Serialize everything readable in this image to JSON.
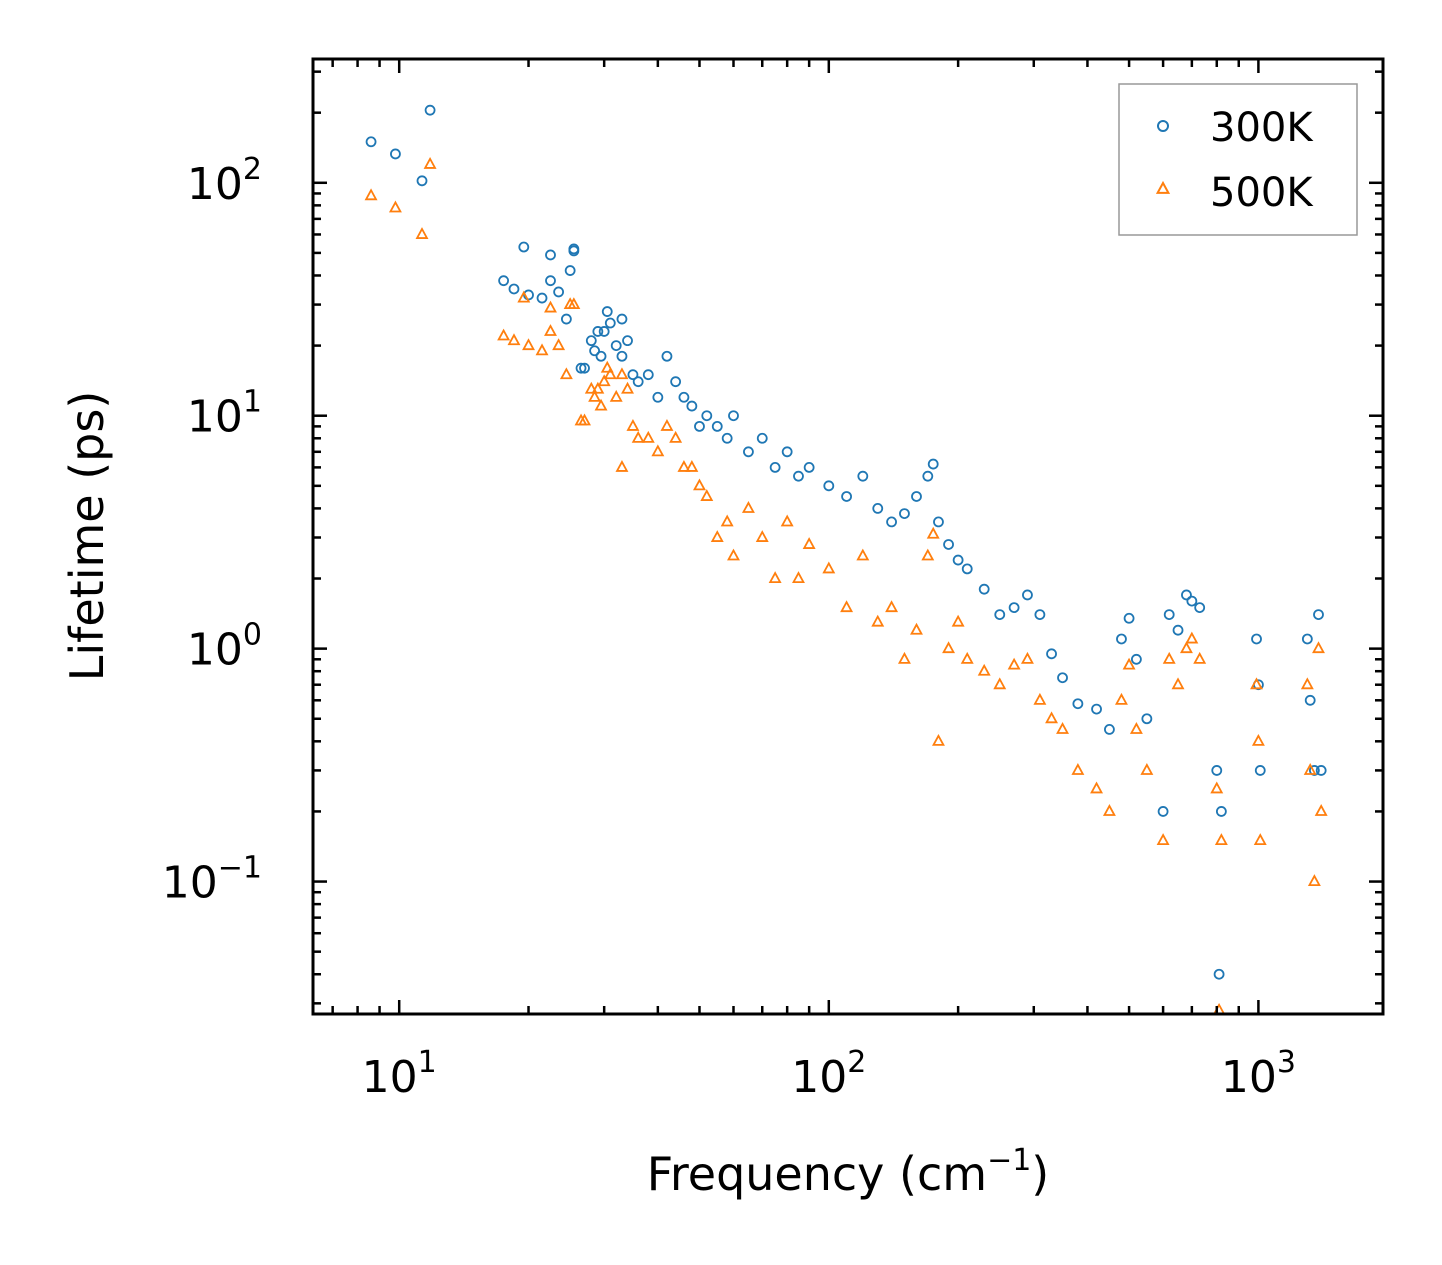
{
  "chart_data": {
    "type": "scatter",
    "title": "",
    "xlabel": "Frequency (cm",
    "xlabel_sup": "−1",
    "xlabel_end": ")",
    "ylabel": "Lifetime (ps)",
    "xscale": "log",
    "yscale": "log",
    "xlim": [
      6.3,
      1950
    ],
    "ylim": [
      0.027,
      340
    ],
    "x_ticks": [
      {
        "value": 10,
        "base": "10",
        "exp": "1"
      },
      {
        "value": 100,
        "base": "10",
        "exp": "2"
      },
      {
        "value": 1000,
        "base": "10",
        "exp": "3"
      }
    ],
    "y_ticks": [
      {
        "value": 0.1,
        "base": "10",
        "exp": "−1"
      },
      {
        "value": 1,
        "base": "10",
        "exp": "0"
      },
      {
        "value": 10,
        "base": "10",
        "exp": "1"
      },
      {
        "value": 100,
        "base": "10",
        "exp": "2"
      }
    ],
    "legend_position": "top-right",
    "series": [
      {
        "name": "300K",
        "marker": "circle",
        "color": "#1f77b4",
        "points": [
          [
            8.6,
            150
          ],
          [
            9.8,
            133
          ],
          [
            11.3,
            102
          ],
          [
            11.8,
            205
          ],
          [
            17.5,
            38
          ],
          [
            18.5,
            35
          ],
          [
            19.5,
            53
          ],
          [
            20,
            33
          ],
          [
            21.5,
            32
          ],
          [
            22.5,
            49
          ],
          [
            22.5,
            38
          ],
          [
            23.5,
            34
          ],
          [
            24.5,
            26
          ],
          [
            25,
            42
          ],
          [
            25.5,
            51
          ],
          [
            25.5,
            52
          ],
          [
            26.5,
            16
          ],
          [
            27,
            16
          ],
          [
            28,
            21
          ],
          [
            28.5,
            19
          ],
          [
            29,
            23
          ],
          [
            29.5,
            18
          ],
          [
            30,
            23
          ],
          [
            30.5,
            28
          ],
          [
            31,
            25
          ],
          [
            32,
            20
          ],
          [
            33,
            26
          ],
          [
            33,
            18
          ],
          [
            34,
            21
          ],
          [
            35,
            15
          ],
          [
            36,
            14
          ],
          [
            38,
            15
          ],
          [
            40,
            12
          ],
          [
            42,
            18
          ],
          [
            44,
            14
          ],
          [
            46,
            12
          ],
          [
            48,
            11
          ],
          [
            50,
            9
          ],
          [
            52,
            10
          ],
          [
            55,
            9
          ],
          [
            58,
            8
          ],
          [
            60,
            10
          ],
          [
            65,
            7
          ],
          [
            70,
            8
          ],
          [
            75,
            6
          ],
          [
            80,
            7
          ],
          [
            85,
            5.5
          ],
          [
            90,
            6
          ],
          [
            100,
            5
          ],
          [
            110,
            4.5
          ],
          [
            120,
            5.5
          ],
          [
            130,
            4
          ],
          [
            140,
            3.5
          ],
          [
            150,
            3.8
          ],
          [
            160,
            4.5
          ],
          [
            170,
            5.5
          ],
          [
            175,
            6.2
          ],
          [
            180,
            3.5
          ],
          [
            190,
            2.8
          ],
          [
            200,
            2.4
          ],
          [
            210,
            2.2
          ],
          [
            230,
            1.8
          ],
          [
            250,
            1.4
          ],
          [
            270,
            1.5
          ],
          [
            290,
            1.7
          ],
          [
            310,
            1.4
          ],
          [
            330,
            0.95
          ],
          [
            350,
            0.75
          ],
          [
            380,
            0.58
          ],
          [
            420,
            0.55
          ],
          [
            450,
            0.45
          ],
          [
            480,
            1.1
          ],
          [
            500,
            1.35
          ],
          [
            520,
            0.9
          ],
          [
            550,
            0.5
          ],
          [
            600,
            0.2
          ],
          [
            620,
            1.4
          ],
          [
            650,
            1.2
          ],
          [
            680,
            1.7
          ],
          [
            700,
            1.6
          ],
          [
            730,
            1.5
          ],
          [
            800,
            0.3
          ],
          [
            810,
            0.04
          ],
          [
            820,
            0.2
          ],
          [
            990,
            1.1
          ],
          [
            1000,
            0.7
          ],
          [
            1010,
            0.3
          ],
          [
            1300,
            1.1
          ],
          [
            1320,
            0.6
          ],
          [
            1350,
            0.3
          ],
          [
            1380,
            1.4
          ],
          [
            1400,
            0.3
          ]
        ]
      },
      {
        "name": "500K",
        "marker": "triangle",
        "color": "#ff7f0e",
        "points": [
          [
            8.6,
            88
          ],
          [
            9.8,
            78
          ],
          [
            11.3,
            60
          ],
          [
            11.8,
            120
          ],
          [
            17.5,
            22
          ],
          [
            18.5,
            21
          ],
          [
            19.5,
            32
          ],
          [
            20,
            20
          ],
          [
            21.5,
            19
          ],
          [
            22.5,
            29
          ],
          [
            22.5,
            23
          ],
          [
            23.5,
            20
          ],
          [
            24.5,
            15
          ],
          [
            25,
            30
          ],
          [
            25.5,
            30
          ],
          [
            26.5,
            9.5
          ],
          [
            27,
            9.5
          ],
          [
            28,
            13
          ],
          [
            28.5,
            12
          ],
          [
            29,
            13
          ],
          [
            29.5,
            11
          ],
          [
            30,
            14
          ],
          [
            30.5,
            16
          ],
          [
            31,
            15
          ],
          [
            32,
            12
          ],
          [
            33,
            15
          ],
          [
            33,
            6
          ],
          [
            34,
            13
          ],
          [
            35,
            9
          ],
          [
            36,
            8
          ],
          [
            38,
            8
          ],
          [
            40,
            7
          ],
          [
            42,
            9
          ],
          [
            44,
            8
          ],
          [
            46,
            6
          ],
          [
            48,
            6
          ],
          [
            50,
            5
          ],
          [
            52,
            4.5
          ],
          [
            55,
            3
          ],
          [
            58,
            3.5
          ],
          [
            60,
            2.5
          ],
          [
            65,
            4
          ],
          [
            70,
            3
          ],
          [
            75,
            2
          ],
          [
            80,
            3.5
          ],
          [
            85,
            2
          ],
          [
            90,
            2.8
          ],
          [
            100,
            2.2
          ],
          [
            110,
            1.5
          ],
          [
            120,
            2.5
          ],
          [
            130,
            1.3
          ],
          [
            140,
            1.5
          ],
          [
            150,
            0.9
          ],
          [
            160,
            1.2
          ],
          [
            170,
            2.5
          ],
          [
            175,
            3.1
          ],
          [
            180,
            0.4
          ],
          [
            190,
            1
          ],
          [
            200,
            1.3
          ],
          [
            210,
            0.9
          ],
          [
            230,
            0.8
          ],
          [
            250,
            0.7
          ],
          [
            270,
            0.85
          ],
          [
            290,
            0.9
          ],
          [
            310,
            0.6
          ],
          [
            330,
            0.5
          ],
          [
            350,
            0.45
          ],
          [
            380,
            0.3
          ],
          [
            420,
            0.25
          ],
          [
            450,
            0.2
          ],
          [
            480,
            0.6
          ],
          [
            500,
            0.85
          ],
          [
            520,
            0.45
          ],
          [
            550,
            0.3
          ],
          [
            600,
            0.15
          ],
          [
            620,
            0.9
          ],
          [
            650,
            0.7
          ],
          [
            680,
            1
          ],
          [
            700,
            1.1
          ],
          [
            730,
            0.9
          ],
          [
            800,
            0.25
          ],
          [
            810,
            0.028
          ],
          [
            820,
            0.15
          ],
          [
            990,
            0.7
          ],
          [
            1000,
            0.4
          ],
          [
            1010,
            0.15
          ],
          [
            1300,
            0.7
          ],
          [
            1320,
            0.3
          ],
          [
            1350,
            0.1
          ],
          [
            1380,
            1
          ],
          [
            1400,
            0.2
          ]
        ]
      }
    ]
  }
}
